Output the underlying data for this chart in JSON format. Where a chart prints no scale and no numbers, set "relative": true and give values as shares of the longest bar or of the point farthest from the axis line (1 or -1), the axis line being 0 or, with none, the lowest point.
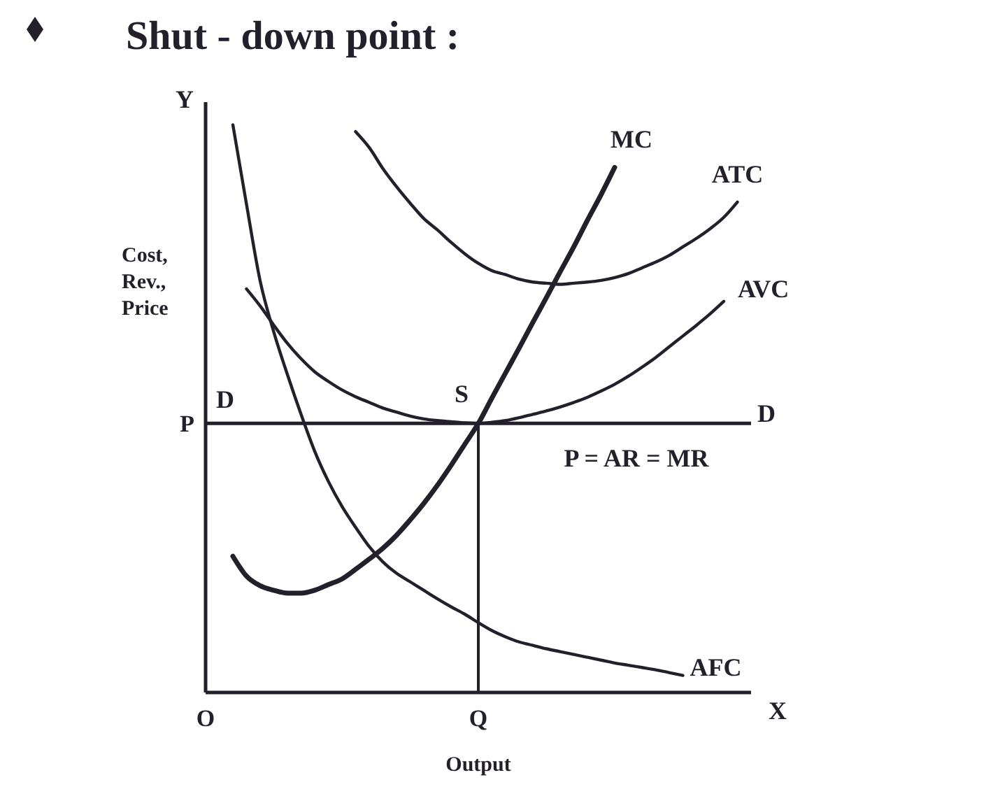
{
  "chart_data": {
    "type": "line",
    "title": "Shut - down point :",
    "xlabel": "Output",
    "ylabel": "Cost, Rev., Price",
    "relative": true,
    "categories": [
      "O",
      null,
      null,
      null,
      null,
      null,
      null,
      null,
      null,
      null,
      null,
      null,
      null,
      null,
      null,
      null,
      null,
      null,
      null,
      null,
      "Q",
      null,
      null,
      null,
      null,
      null,
      null,
      null,
      null,
      null,
      null,
      null,
      null,
      null,
      null,
      null,
      null,
      null,
      null,
      null,
      null
    ],
    "series": [
      {
        "name": "MC",
        "color": "#231f2b",
        "values": [
          null,
          null,
          0.24,
          0.205,
          0.188,
          0.18,
          0.175,
          0.175,
          0.18,
          0.19,
          0.2,
          0.217,
          0.235,
          0.254,
          0.277,
          0.304,
          0.333,
          0.365,
          0.4,
          0.437,
          0.474,
          0.519,
          0.563,
          0.607,
          0.652,
          0.696,
          0.741,
          0.785,
          0.832,
          0.877,
          0.925,
          null,
          null,
          null,
          null,
          null,
          null,
          null,
          null,
          null,
          null
        ]
      },
      {
        "name": "ATC",
        "color": "#231f2b",
        "values": [
          null,
          null,
          null,
          null,
          null,
          null,
          null,
          null,
          null,
          null,
          null,
          0.988,
          0.96,
          0.923,
          0.891,
          0.862,
          0.835,
          0.815,
          0.793,
          0.773,
          0.756,
          0.743,
          0.736,
          0.728,
          0.723,
          0.721,
          0.719,
          0.721,
          0.723,
          0.726,
          0.731,
          0.738,
          0.748,
          0.758,
          0.77,
          0.785,
          0.8,
          0.817,
          0.837,
          0.864,
          null
        ]
      },
      {
        "name": "AVC",
        "color": "#231f2b",
        "values": [
          null,
          null,
          null,
          0.711,
          0.681,
          0.647,
          0.615,
          0.588,
          0.565,
          0.548,
          0.533,
          0.521,
          0.511,
          0.501,
          0.494,
          0.487,
          0.482,
          0.479,
          0.477,
          0.475,
          0.474,
          0.476,
          0.479,
          0.484,
          0.49,
          0.496,
          0.503,
          0.511,
          0.52,
          0.531,
          0.543,
          0.557,
          0.573,
          0.59,
          0.609,
          0.628,
          0.647,
          0.667,
          0.689,
          null,
          null
        ]
      },
      {
        "name": "AFC",
        "color": "#231f2b",
        "values": [
          null,
          null,
          1.0,
          0.86,
          0.725,
          0.635,
          0.56,
          0.49,
          0.425,
          0.372,
          0.328,
          0.291,
          0.257,
          0.23,
          0.21,
          0.195,
          0.18,
          0.165,
          0.151,
          0.138,
          0.123,
          0.109,
          0.098,
          0.089,
          0.083,
          0.077,
          0.072,
          0.067,
          0.062,
          0.057,
          0.052,
          0.048,
          0.044,
          0.04,
          0.035,
          0.03,
          null,
          null,
          null,
          null,
          null
        ]
      }
    ],
    "ref_lines": [
      {
        "axis": "y",
        "value": 0.474,
        "label": "P"
      },
      {
        "axis": "x",
        "value": "Q"
      }
    ],
    "annotations": [
      {
        "text": "S",
        "x": "Q",
        "y": 0.474
      },
      "D",
      "D",
      {
        "text": "P = AR = MR",
        "y": 0.474
      },
      "X",
      "Y"
    ],
    "legend": false,
    "grid": false,
    "marker": "none",
    "line_style": "solid"
  }
}
